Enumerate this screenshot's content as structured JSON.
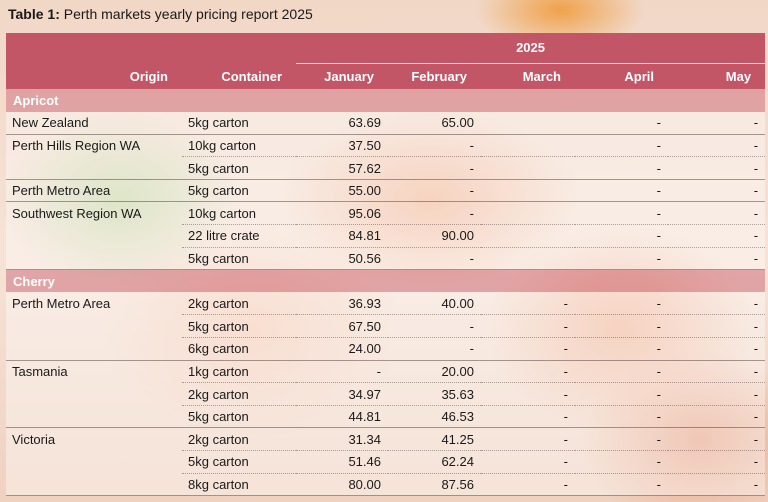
{
  "caption": {
    "label": "Table 1:",
    "text": "Perth markets yearly pricing report 2025"
  },
  "header": {
    "year": "2025",
    "columns": [
      "Origin",
      "Container",
      "January",
      "February",
      "March",
      "April",
      "May"
    ]
  },
  "sections": [
    {
      "name": "Apricot",
      "rows": [
        {
          "origin": "New Zealand",
          "container": "5kg carton",
          "jan": "63.69",
          "feb": "65.00",
          "mar": "",
          "apr": "-",
          "may": "-"
        },
        {
          "origin": "Perth Hills Region WA",
          "container": "10kg carton",
          "jan": "37.50",
          "feb": "-",
          "mar": "",
          "apr": "-",
          "may": "-"
        },
        {
          "origin": "",
          "container": "5kg carton",
          "jan": "57.62",
          "feb": "-",
          "mar": "",
          "apr": "-",
          "may": "-"
        },
        {
          "origin": "Perth Metro Area",
          "container": "5kg carton",
          "jan": "55.00",
          "feb": "-",
          "mar": "",
          "apr": "-",
          "may": "-"
        },
        {
          "origin": "Southwest Region WA",
          "container": "10kg carton",
          "jan": "95.06",
          "feb": "-",
          "mar": "",
          "apr": "-",
          "may": "-"
        },
        {
          "origin": "",
          "container": "22 litre crate",
          "jan": "84.81",
          "feb": "90.00",
          "mar": "",
          "apr": "-",
          "may": "-"
        },
        {
          "origin": "",
          "container": "5kg carton",
          "jan": "50.56",
          "feb": "-",
          "mar": "",
          "apr": "-",
          "may": "-"
        }
      ]
    },
    {
      "name": "Cherry",
      "rows": [
        {
          "origin": "Perth Metro Area",
          "container": "2kg carton",
          "jan": "36.93",
          "feb": "40.00",
          "mar": "-",
          "apr": "-",
          "may": "-"
        },
        {
          "origin": "",
          "container": "5kg carton",
          "jan": "67.50",
          "feb": "-",
          "mar": "-",
          "apr": "-",
          "may": "-"
        },
        {
          "origin": "",
          "container": "6kg carton",
          "jan": "24.00",
          "feb": "-",
          "mar": "-",
          "apr": "-",
          "may": "-"
        },
        {
          "origin": "Tasmania",
          "container": "1kg carton",
          "jan": "-",
          "feb": "20.00",
          "mar": "-",
          "apr": "-",
          "may": "-"
        },
        {
          "origin": "",
          "container": "2kg carton",
          "jan": "34.97",
          "feb": "35.63",
          "mar": "-",
          "apr": "-",
          "may": "-"
        },
        {
          "origin": "",
          "container": "5kg carton",
          "jan": "44.81",
          "feb": "46.53",
          "mar": "-",
          "apr": "-",
          "may": "-"
        },
        {
          "origin": "Victoria",
          "container": "2kg carton",
          "jan": "31.34",
          "feb": "41.25",
          "mar": "-",
          "apr": "-",
          "may": "-"
        },
        {
          "origin": "",
          "container": "5kg carton",
          "jan": "51.46",
          "feb": "62.24",
          "mar": "-",
          "apr": "-",
          "may": "-"
        },
        {
          "origin": "",
          "container": "8kg carton",
          "jan": "80.00",
          "feb": "87.56",
          "mar": "-",
          "apr": "-",
          "may": "-"
        }
      ]
    }
  ]
}
